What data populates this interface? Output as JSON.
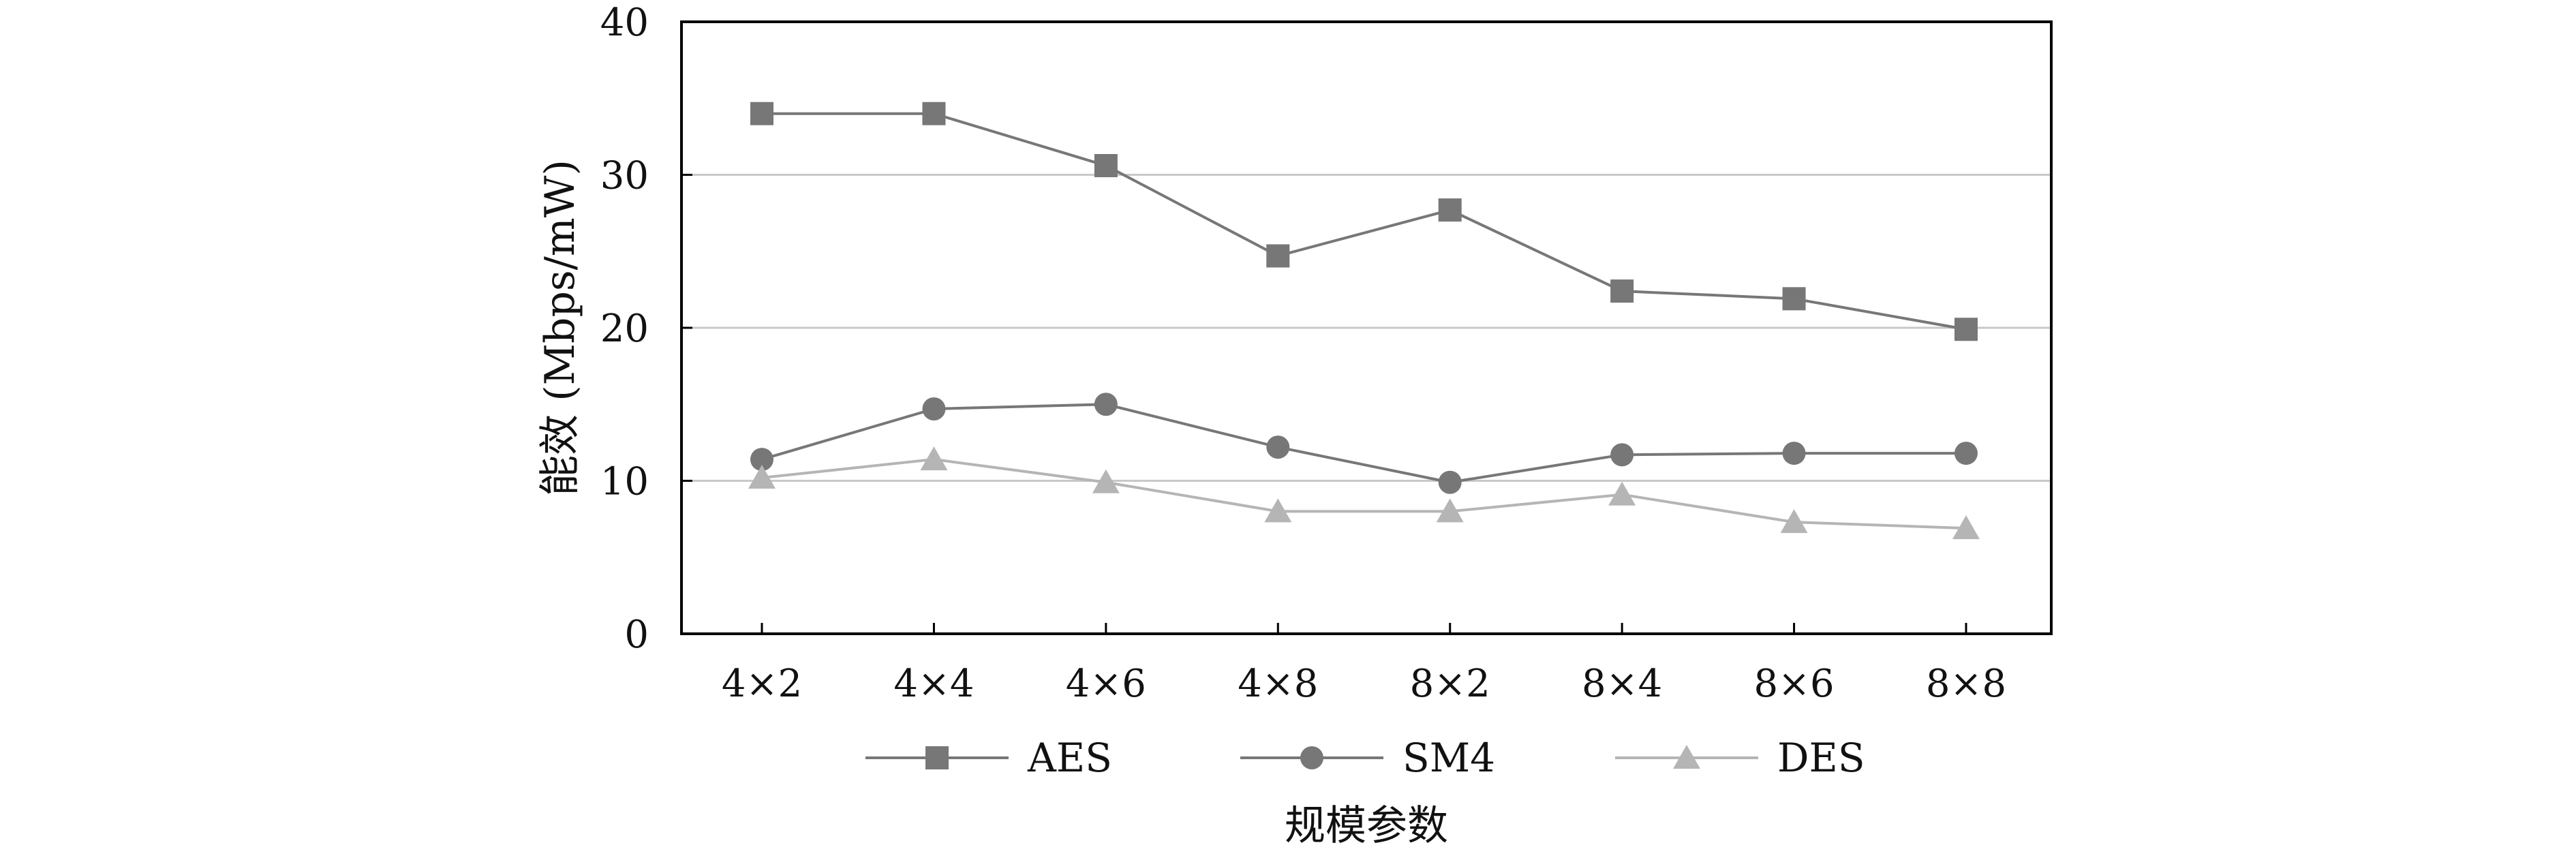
{
  "chart_data": {
    "type": "line",
    "categories": [
      "4×2",
      "4×4",
      "4×6",
      "4×8",
      "8×2",
      "8×4",
      "8×6",
      "8×8"
    ],
    "xlabel": "规模参数",
    "ylabel": "能效 (Mbps/mW)",
    "ylim": [
      0,
      40
    ],
    "yticks": [
      "0",
      "10",
      "20",
      "30",
      "40"
    ],
    "grid": "horizontal",
    "legend_position": "bottom",
    "series": [
      {
        "name": "AES",
        "marker": "square",
        "color": "#777777",
        "values": [
          34.0,
          34.0,
          30.6,
          24.7,
          27.7,
          22.4,
          21.9,
          19.9
        ]
      },
      {
        "name": "SM4",
        "marker": "circle",
        "color": "#777777",
        "values": [
          11.4,
          14.7,
          15.0,
          12.2,
          9.9,
          11.7,
          11.8,
          11.8
        ]
      },
      {
        "name": "DES",
        "marker": "triangle",
        "color": "#b5b5b5",
        "values": [
          10.2,
          11.4,
          9.9,
          8.0,
          8.0,
          9.1,
          7.3,
          6.9
        ]
      }
    ]
  }
}
